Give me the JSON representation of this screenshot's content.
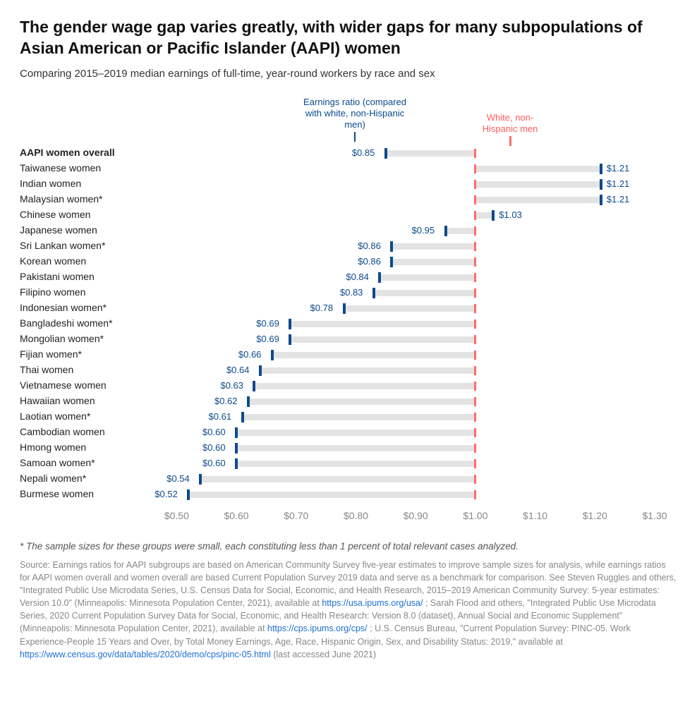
{
  "title": "The gender wage gap varies greatly, with wider gaps for many subpopulations of Asian American or Pacific Islander (AAPI) women",
  "subtitle": "Comparing 2015–2019 median earnings of full-time, year-round workers by race and sex",
  "chart": {
    "type": "horizontal-dot-range",
    "x_min": 0.45,
    "x_max": 1.3,
    "x_ticks": [
      0.5,
      0.6,
      0.7,
      0.8,
      0.9,
      1.0,
      1.1,
      1.2,
      1.3
    ],
    "x_tick_labels": [
      "$0.50",
      "$0.60",
      "$0.70",
      "$0.80",
      "$0.90",
      "$1.00",
      "$1.10",
      "$1.20",
      "$1.30"
    ],
    "reference_value": 1.0,
    "colors": {
      "bar_bg": "#e3e3e3",
      "ref_tick": "#ff6b6b",
      "val_tick": "#0b4a8f",
      "val_label": "#0b4a8f",
      "axis_label": "#888888",
      "background": "#ffffff"
    },
    "legend_blue": "Earnings ratio (compared with white, non-Hispanic men)",
    "legend_red": "White, non-Hispanic men",
    "rows": [
      {
        "label": "AAPI women overall",
        "value": 0.85,
        "display": "$0.85",
        "bold": true
      },
      {
        "label": "Taiwanese women",
        "value": 1.21,
        "display": "$1.21"
      },
      {
        "label": "Indian women",
        "value": 1.21,
        "display": "$1.21"
      },
      {
        "label": "Malaysian women*",
        "value": 1.21,
        "display": "$1.21"
      },
      {
        "label": "Chinese women",
        "value": 1.03,
        "display": "$1.03"
      },
      {
        "label": "Japanese women",
        "value": 0.95,
        "display": "$0.95"
      },
      {
        "label": "Sri Lankan women*",
        "value": 0.86,
        "display": "$0.86"
      },
      {
        "label": "Korean women",
        "value": 0.86,
        "display": "$0.86"
      },
      {
        "label": "Pakistani women",
        "value": 0.84,
        "display": "$0.84"
      },
      {
        "label": "Filipino women",
        "value": 0.83,
        "display": "$0.83"
      },
      {
        "label": "Indonesian women*",
        "value": 0.78,
        "display": "$0.78"
      },
      {
        "label": "Bangladeshi women*",
        "value": 0.69,
        "display": "$0.69"
      },
      {
        "label": "Mongolian women*",
        "value": 0.69,
        "display": "$0.69"
      },
      {
        "label": "Fijian women*",
        "value": 0.66,
        "display": "$0.66"
      },
      {
        "label": "Thai women",
        "value": 0.64,
        "display": "$0.64"
      },
      {
        "label": "Vietnamese women",
        "value": 0.63,
        "display": "$0.63"
      },
      {
        "label": "Hawaiian women",
        "value": 0.62,
        "display": "$0.62"
      },
      {
        "label": "Laotian women*",
        "value": 0.61,
        "display": "$0.61"
      },
      {
        "label": "Cambodian women",
        "value": 0.6,
        "display": "$0.60"
      },
      {
        "label": "Hmong women",
        "value": 0.6,
        "display": "$0.60"
      },
      {
        "label": "Samoan women*",
        "value": 0.6,
        "display": "$0.60"
      },
      {
        "label": "Nepali women*",
        "value": 0.54,
        "display": "$0.54"
      },
      {
        "label": "Burmese women",
        "value": 0.52,
        "display": "$0.52"
      }
    ]
  },
  "footnote": "* The sample sizes for these groups were small, each constituting less than 1 percent of total relevant cases analyzed.",
  "source": {
    "prefix": "Source: Earnings ratios for AAPI subgroups are based on American Community Survey five-year estimates to improve sample sizes for analysis, while earnings ratios for AAPI women overall and women overall are based Current Population Survey 2019 data and serve as a benchmark for comparison. See Steven Ruggles and others, \"Integrated Public Use Microdata Series, U.S. Census Data for Social, Economic, and Health Research, 2015–2019 American Community Survey: 5-year estimates: Version 10.0\" (Minneapolis: Minnesota Population Center, 2021), available at ",
    "link1": "https://usa.ipums.org/usa/",
    "mid1": "; Sarah Flood and others, \"Integrated Public Use Microdata Series, 2020 Current Population Survey Data for Social, Economic, and Health Research: Version 8.0 (dataset), Annual Social and Economic Supplement\" (Minneapolis: Minnesota Population Center, 2021), available at ",
    "link2": "https://cps.ipums.org/cps/",
    "mid2": "; U.S. Census Bureau, \"Current Population Survey: PINC-05. Work Experience-People 15 Years and Over, by Total Money Earnings, Age, Race, Hispanic Origin, Sex, and Disability Status: 2019,\" available at ",
    "link3": "https://www.census.gov/data/tables/2020/demo/cps/pinc-05.html",
    "suffix": " (last accessed June 2021)"
  }
}
